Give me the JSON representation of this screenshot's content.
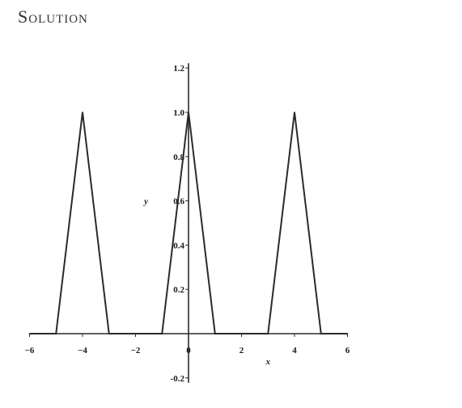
{
  "heading": "Solution",
  "chart_data": {
    "type": "line",
    "xlabel": "x",
    "ylabel": "y",
    "xlim": [
      -6,
      6
    ],
    "ylim": [
      -0.2,
      1.2
    ],
    "x_ticks": [
      -6,
      -4,
      -2,
      0,
      2,
      4,
      6
    ],
    "x_tick_labels": [
      "−6",
      "−4",
      "−2",
      "0",
      "2",
      "4",
      "6"
    ],
    "y_ticks": [
      -0.2,
      0.2,
      0.4,
      0.6,
      0.8,
      1.0,
      1.2
    ],
    "y_tick_labels": [
      "-0.2",
      "0.2",
      "0.4",
      "0.6",
      "0.8",
      "1.0",
      "1.2"
    ],
    "grid": false,
    "series": [
      {
        "x": [
          -6,
          -5,
          -4,
          -3,
          -1,
          0,
          1,
          3,
          4,
          5,
          6
        ],
        "y": [
          0,
          0,
          1,
          0,
          0,
          1,
          0,
          0,
          1,
          0,
          0
        ],
        "color": "#2a2a2a"
      }
    ]
  }
}
